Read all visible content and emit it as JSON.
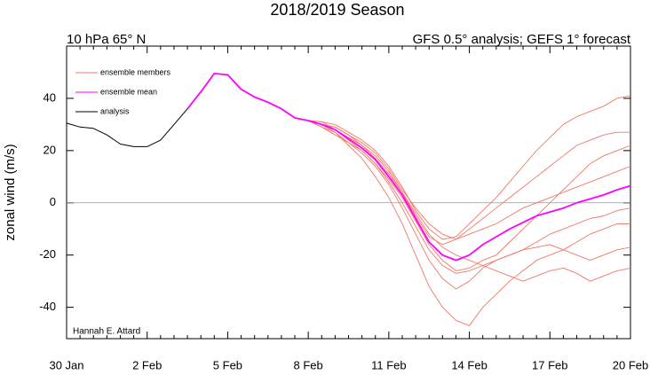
{
  "chart_data": {
    "type": "line",
    "title": "2018/2019 Season",
    "subtitle_left": "10 hPa 65° N",
    "subtitle_right": "GFS 0.5° analysis; GEFS 1° forecast",
    "y_label": "zonal wind (m/s)",
    "annotation": "Hannah E. Attard",
    "categories": [
      "30 Jan",
      null,
      null,
      null,
      null,
      null,
      "2 Feb",
      null,
      null,
      null,
      null,
      null,
      "5 Feb",
      null,
      null,
      null,
      null,
      null,
      "8 Feb",
      null,
      null,
      null,
      null,
      null,
      "11 Feb",
      null,
      null,
      null,
      null,
      null,
      "14 Feb",
      null,
      null,
      null,
      null,
      null,
      "17 Feb",
      null,
      null,
      null,
      null,
      null,
      "20 Feb"
    ],
    "ylim": [
      -52,
      60
    ],
    "yticks": [
      -40,
      -20,
      0,
      20,
      40
    ],
    "zero_line": true,
    "legend": "upper left",
    "series": [
      {
        "name": "ensemble members",
        "color": "#f07868",
        "members": [
          [
            null,
            null,
            null,
            null,
            null,
            null,
            null,
            null,
            null,
            36,
            42.5,
            49.5,
            49,
            43.5,
            40.5,
            38.5,
            36,
            32.5,
            31.5,
            31,
            30,
            27,
            24,
            20,
            14,
            6,
            -3,
            -10,
            -14,
            -13,
            -8,
            -3,
            2,
            8,
            14,
            20,
            25,
            30,
            33,
            35,
            37,
            40,
            41
          ],
          [
            null,
            null,
            null,
            null,
            null,
            null,
            null,
            null,
            null,
            36,
            42.5,
            49.5,
            49,
            43.5,
            40.5,
            38.5,
            36,
            32.5,
            31.5,
            30,
            28,
            25,
            22,
            18,
            12,
            4,
            -5,
            -13,
            -16,
            -14,
            -10,
            -6,
            -2,
            2,
            6,
            10,
            14,
            18,
            22,
            24,
            26,
            27,
            27
          ],
          [
            null,
            null,
            null,
            null,
            null,
            null,
            null,
            null,
            null,
            36,
            42.5,
            49.5,
            49,
            43.5,
            40.5,
            38.5,
            36,
            32.5,
            31.5,
            29,
            27,
            23,
            19,
            14,
            7,
            -2,
            -12,
            -22,
            -29,
            -33,
            -30,
            -25,
            -22,
            -20,
            -18,
            -15,
            -12,
            -10,
            -8,
            -6,
            -5,
            -3,
            -2
          ],
          [
            null,
            null,
            null,
            null,
            null,
            null,
            null,
            null,
            null,
            36,
            42.5,
            49.5,
            49,
            43.5,
            40.5,
            38.5,
            36,
            32.5,
            31.5,
            30,
            27,
            22,
            17,
            10,
            2,
            -8,
            -20,
            -32,
            -40,
            -45,
            -47,
            -40,
            -35,
            -30,
            -26,
            -22,
            -20,
            -18,
            -15,
            -12,
            -10,
            -8,
            -8
          ],
          [
            null,
            null,
            null,
            null,
            null,
            null,
            null,
            null,
            null,
            36,
            42.5,
            49.5,
            49,
            43.5,
            40.5,
            38.5,
            36,
            32.5,
            31.5,
            29,
            26,
            23,
            20,
            15,
            9,
            2,
            -7,
            -16,
            -22,
            -26,
            -25,
            -22,
            -20,
            -15,
            -10,
            -5,
            0,
            5,
            10,
            15,
            18,
            20,
            22
          ],
          [
            null,
            null,
            null,
            null,
            null,
            null,
            null,
            null,
            null,
            36,
            42.5,
            49.5,
            49,
            43.5,
            40.5,
            38.5,
            36,
            32.5,
            31.5,
            30,
            29,
            26,
            22,
            17,
            11,
            4,
            -4,
            -12,
            -17,
            -20,
            -22,
            -24,
            -26,
            -28,
            -30,
            -28,
            -26,
            -25,
            -27,
            -30,
            -28,
            -26,
            -25
          ],
          [
            null,
            null,
            null,
            null,
            null,
            null,
            null,
            null,
            null,
            36,
            42.5,
            49.5,
            49,
            43.5,
            40.5,
            38.5,
            36,
            32.5,
            31.5,
            31,
            28,
            24,
            20,
            15,
            8,
            0,
            -9,
            -18,
            -24,
            -27,
            -26,
            -24,
            -22,
            -20,
            -18,
            -17,
            -16,
            -18,
            -20,
            -22,
            -20,
            -18,
            -17
          ],
          [
            null,
            null,
            null,
            null,
            null,
            null,
            null,
            null,
            null,
            36,
            42.5,
            49.5,
            49,
            43.5,
            40.5,
            38.5,
            36,
            32.5,
            31.5,
            30,
            29,
            26,
            23,
            19,
            13,
            5,
            -2,
            -8,
            -12,
            -14,
            -12,
            -10,
            -8,
            -5,
            -2,
            0,
            2,
            4,
            6,
            8,
            10,
            12,
            14
          ]
        ]
      },
      {
        "name": "ensemble mean",
        "color": "#ff00ff",
        "values": [
          null,
          null,
          null,
          null,
          null,
          null,
          null,
          null,
          null,
          36,
          42.5,
          49.5,
          49,
          43.5,
          40.5,
          38.5,
          36,
          32.5,
          31.5,
          30,
          28,
          24.5,
          21,
          16.5,
          10,
          3,
          -6,
          -15,
          -20,
          -22,
          -20,
          -16,
          -13,
          -10,
          -7.5,
          -5,
          -3.5,
          -2,
          0,
          1.5,
          3,
          5,
          6.5
        ]
      },
      {
        "name": "analysis",
        "color": "#000000",
        "values": [
          30.5,
          29,
          28.5,
          26,
          22.5,
          21.5,
          21.5,
          24,
          30,
          36,
          null,
          null,
          null,
          null,
          null,
          null,
          null,
          null,
          null,
          null,
          null,
          null,
          null,
          null,
          null,
          null,
          null,
          null,
          null,
          null,
          null,
          null,
          null,
          null,
          null,
          null,
          null,
          null,
          null,
          null,
          null,
          null,
          null
        ]
      }
    ]
  }
}
